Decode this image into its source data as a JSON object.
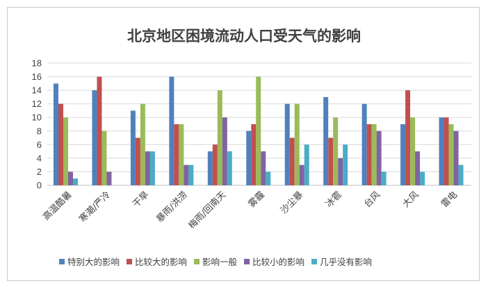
{
  "chart_data": {
    "type": "bar",
    "title": "北京地区困境流动人口受天气的影响",
    "xlabel": "",
    "ylabel": "",
    "ylim": [
      0,
      18
    ],
    "yticks": [
      0,
      2,
      4,
      6,
      8,
      10,
      12,
      14,
      16,
      18
    ],
    "grid": true,
    "legend_position": "bottom",
    "categories": [
      "高温酷暑",
      "寒潮/严冷",
      "干旱",
      "暴雨/洪涝",
      "梅雨/回南天",
      "雾霾",
      "沙尘暴",
      "冰雹",
      "台风",
      "大风",
      "雷电"
    ],
    "series": [
      {
        "name": "特别大的影响",
        "color": "#4f81bd",
        "values": [
          15,
          14,
          11,
          16,
          5,
          8,
          12,
          13,
          12,
          9,
          10
        ]
      },
      {
        "name": "比较大的影响",
        "color": "#c0504d",
        "values": [
          12,
          16,
          7,
          9,
          6,
          9,
          7,
          7,
          9,
          14,
          10
        ]
      },
      {
        "name": "影响一般",
        "color": "#9bbb59",
        "values": [
          10,
          8,
          12,
          9,
          14,
          16,
          12,
          10,
          9,
          10,
          9
        ]
      },
      {
        "name": "比较小的影响",
        "color": "#8064a2",
        "values": [
          2,
          2,
          5,
          3,
          10,
          5,
          3,
          4,
          8,
          5,
          8
        ]
      },
      {
        "name": "几乎没有影响",
        "color": "#4bacc6",
        "values": [
          1,
          0,
          5,
          3,
          5,
          2,
          6,
          6,
          2,
          2,
          3
        ]
      }
    ]
  }
}
